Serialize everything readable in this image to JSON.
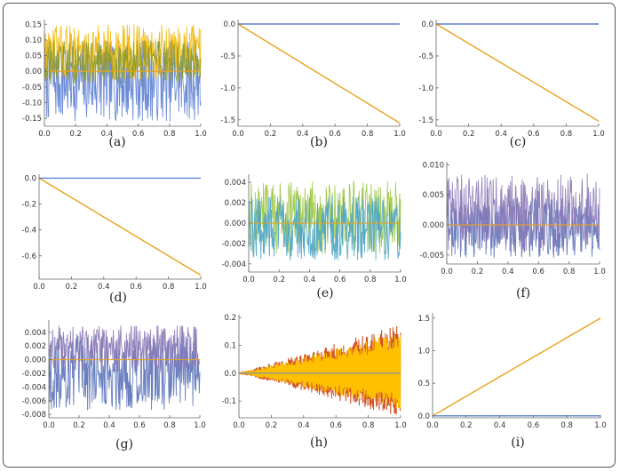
{
  "figure": {
    "colors": {
      "blue": "#5e81d2",
      "yellow": "#f2b705",
      "olive": "#8c9a2a",
      "orange": "#e8a21e",
      "green": "#9bc640",
      "teal": "#4aa3c8",
      "purple": "#8a78b6",
      "dblue": "#5a72b8",
      "red": "#d2552d",
      "gold": "#ffc000"
    }
  },
  "chart_data": [
    {
      "id": "a",
      "caption": "(a)",
      "type": "line",
      "style": "noise",
      "xlim": [
        0,
        1
      ],
      "ylim": [
        -0.175,
        0.165
      ],
      "xticks": [
        "0.0",
        "0.2",
        "0.4",
        "0.6",
        "0.8",
        "1.0"
      ],
      "yticks": [
        "0.15",
        "0.10",
        "0.05",
        "0.00",
        "-0.05",
        "-0.10",
        "-0.15"
      ],
      "series": [
        {
          "name": "blue band",
          "color": "blue",
          "center": -0.03,
          "amplitude": 0.13
        },
        {
          "name": "yellow band",
          "color": "yellow",
          "center": 0.06,
          "amplitude": 0.09
        },
        {
          "name": "olive band",
          "color": "olive",
          "center": 0.03,
          "amplitude": 0.07
        },
        {
          "name": "zero line",
          "color": "orange",
          "center": 0.0,
          "amplitude": 0
        }
      ]
    },
    {
      "id": "b",
      "caption": "(b)",
      "type": "line",
      "style": "lines",
      "xlim": [
        0,
        1
      ],
      "ylim": [
        -1.6,
        0.07
      ],
      "xticks": [
        "0.0",
        "0.2",
        "0.4",
        "0.6",
        "0.8",
        "1.0"
      ],
      "yticks": [
        "0.0",
        "-0.5",
        "-1.0",
        "-1.5"
      ],
      "series": [
        {
          "name": "constant",
          "color": "blue",
          "x": [
            0,
            1
          ],
          "y": [
            0,
            0
          ]
        },
        {
          "name": "linear decay",
          "color": "orange",
          "x": [
            0,
            1
          ],
          "y": [
            0,
            -1.55
          ]
        }
      ]
    },
    {
      "id": "c",
      "caption": "(c)",
      "type": "line",
      "style": "lines",
      "xlim": [
        0,
        1
      ],
      "ylim": [
        -1.6,
        0.07
      ],
      "xticks": [
        "0.0",
        "0.2",
        "0.4",
        "0.6",
        "0.8",
        "1.0"
      ],
      "yticks": [
        "0.0",
        "-0.5",
        "-1.0",
        "-1.5"
      ],
      "series": [
        {
          "name": "constant",
          "color": "blue",
          "x": [
            0,
            1
          ],
          "y": [
            0,
            0
          ]
        },
        {
          "name": "linear decay",
          "color": "orange",
          "x": [
            0,
            1
          ],
          "y": [
            0,
            -1.52
          ]
        }
      ]
    },
    {
      "id": "d",
      "caption": "(d)",
      "type": "line",
      "style": "lines",
      "xlim": [
        0,
        1
      ],
      "ylim": [
        -0.78,
        0.03
      ],
      "xticks": [
        "0.0",
        "0.2",
        "0.4",
        "0.6",
        "0.8",
        "1.0"
      ],
      "yticks": [
        "0.0",
        "-0.2",
        "-0.4",
        "-0.6"
      ],
      "series": [
        {
          "name": "constant",
          "color": "blue",
          "x": [
            0,
            1
          ],
          "y": [
            0,
            0
          ]
        },
        {
          "name": "linear decay",
          "color": "orange",
          "x": [
            0,
            1
          ],
          "y": [
            0,
            -0.75
          ]
        }
      ]
    },
    {
      "id": "e",
      "caption": "(e)",
      "type": "line",
      "style": "noise",
      "xlim": [
        0,
        1
      ],
      "ylim": [
        -0.0048,
        0.0048
      ],
      "xticks": [
        "0.0",
        "0.2",
        "0.4",
        "0.6",
        "0.8",
        "1.0"
      ],
      "yticks": [
        "0.004",
        "0.002",
        "0.000",
        "-0.002",
        "-0.004"
      ],
      "series": [
        {
          "name": "green band",
          "color": "green",
          "center": 0.0005,
          "amplitude": 0.0036
        },
        {
          "name": "teal band",
          "color": "teal",
          "center": -0.0005,
          "amplitude": 0.0032
        },
        {
          "name": "zero line",
          "color": "orange",
          "center": 0.0,
          "amplitude": 0
        }
      ]
    },
    {
      "id": "f",
      "caption": "(f)",
      "type": "line",
      "style": "noise",
      "xlim": [
        0,
        1
      ],
      "ylim": [
        -0.0065,
        0.0105
      ],
      "xticks": [
        "0.0",
        "0.2",
        "0.4",
        "0.6",
        "0.8",
        "1.0"
      ],
      "yticks": [
        "0.010",
        "0.005",
        "0.000",
        "-0.005"
      ],
      "series": [
        {
          "name": "blue band",
          "color": "dblue",
          "center": -0.0005,
          "amplitude": 0.005
        },
        {
          "name": "purple band",
          "color": "purple",
          "center": 0.002,
          "amplitude": 0.0065
        },
        {
          "name": "zero line",
          "color": "orange",
          "center": 0.0,
          "amplitude": 0
        }
      ]
    },
    {
      "id": "g",
      "caption": "(g)",
      "type": "line",
      "style": "noise",
      "xlim": [
        0,
        1
      ],
      "ylim": [
        -0.0085,
        0.0058
      ],
      "xticks": [
        "0.0",
        "0.2",
        "0.4",
        "0.6",
        "0.8",
        "1.0"
      ],
      "yticks": [
        "0.004",
        "0.002",
        "0.000",
        "-0.002",
        "-0.004",
        "-0.006",
        "-0.008"
      ],
      "series": [
        {
          "name": "blue band",
          "color": "dblue",
          "center": -0.002,
          "amplitude": 0.0055
        },
        {
          "name": "purple band",
          "color": "purple",
          "center": 0.0015,
          "amplitude": 0.0035
        },
        {
          "name": "zero line",
          "color": "orange",
          "center": 0.0,
          "amplitude": 0
        }
      ]
    },
    {
      "id": "h",
      "caption": "(h)",
      "type": "area",
      "style": "fan",
      "xlim": [
        0,
        1
      ],
      "ylim": [
        -0.16,
        0.21
      ],
      "xticks": [
        "0.0",
        "0.2",
        "0.4",
        "0.6",
        "0.8",
        "1.0"
      ],
      "yticks": [
        "0.2",
        "0.1",
        "0.0",
        "-0.1"
      ],
      "series": [
        {
          "name": "red envelope",
          "color": "red",
          "upper_end": 0.18,
          "lower_end": -0.16
        },
        {
          "name": "gold fill",
          "color": "gold",
          "upper_end": 0.15,
          "lower_end": -0.13
        },
        {
          "name": "zero line",
          "color": "blue",
          "center": 0.0,
          "amplitude": 0
        }
      ]
    },
    {
      "id": "i",
      "caption": "(i)",
      "type": "line",
      "style": "lines",
      "xlim": [
        0,
        1
      ],
      "ylim": [
        -0.03,
        1.58
      ],
      "xticks": [
        "0.0",
        "0.2",
        "0.4",
        "0.6",
        "0.8",
        "1.0"
      ],
      "yticks": [
        "1.5",
        "1.0",
        "0.5",
        "0.0"
      ],
      "series": [
        {
          "name": "constant",
          "color": "blue",
          "x": [
            0,
            1
          ],
          "y": [
            0,
            0
          ]
        },
        {
          "name": "linear growth",
          "color": "orange",
          "x": [
            0,
            1
          ],
          "y": [
            0,
            1.5
          ]
        }
      ]
    }
  ]
}
